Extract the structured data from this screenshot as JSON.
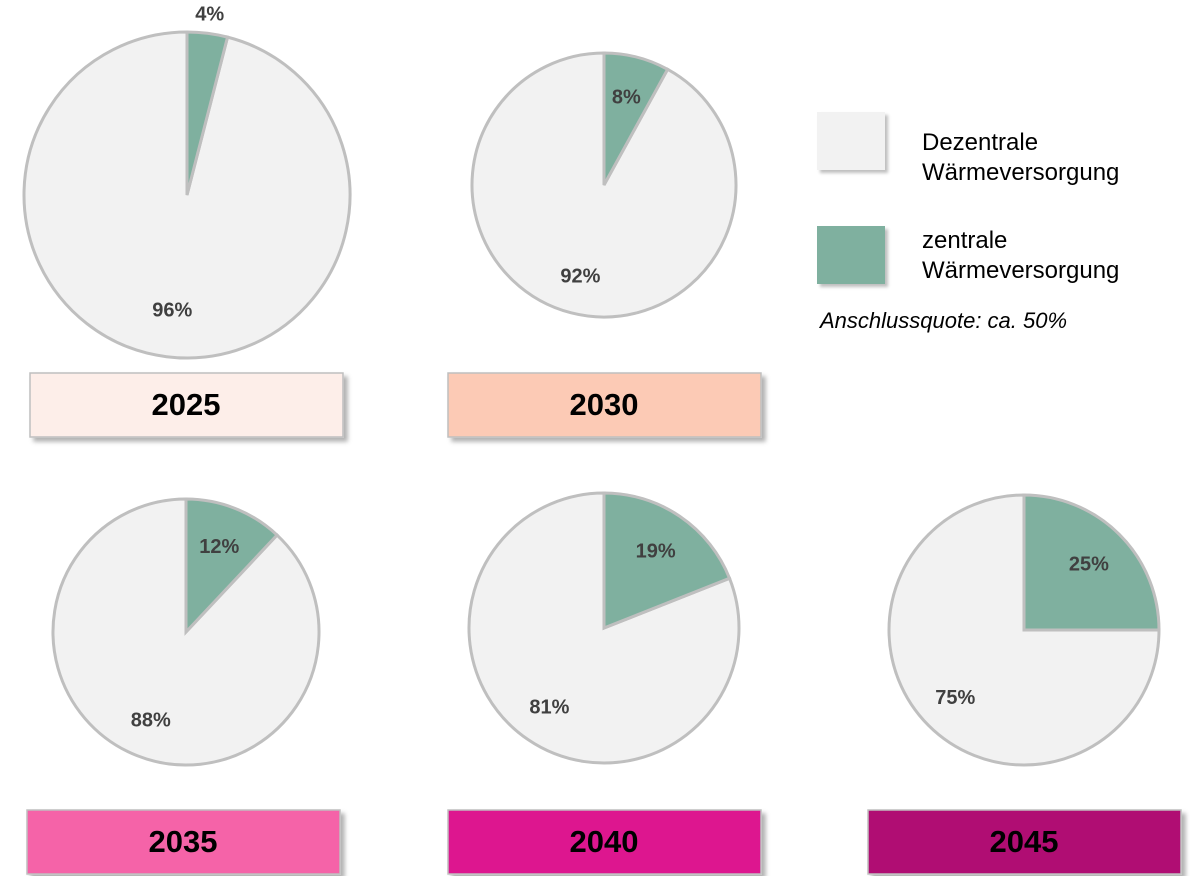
{
  "chart_data": [
    {
      "type": "pie",
      "title": "2025",
      "title_box_color": "#fdeee9",
      "values": [
        96,
        4
      ],
      "value_labels": [
        "96%",
        "4%"
      ]
    },
    {
      "type": "pie",
      "title": "2030",
      "title_box_color": "#fccab5",
      "values": [
        92,
        8
      ],
      "value_labels": [
        "92%",
        "8%"
      ]
    },
    {
      "type": "pie",
      "title": "2035",
      "title_box_color": "#f564a8",
      "values": [
        88,
        12
      ],
      "value_labels": [
        "88%",
        "12%"
      ]
    },
    {
      "type": "pie",
      "title": "2040",
      "title_box_color": "#dd168f",
      "values": [
        81,
        19
      ],
      "value_labels": [
        "81%",
        "19%"
      ]
    },
    {
      "type": "pie",
      "title": "2045",
      "title_box_color": "#b01073",
      "values": [
        75,
        25
      ],
      "value_labels": [
        "75%",
        "25%"
      ]
    }
  ],
  "legend": {
    "items": [
      {
        "label": "Dezentrale Wärmeversorgung",
        "color": "#f2f2f2"
      },
      {
        "label": "zentrale Wärmeversorgung",
        "color": "#7fb09f"
      }
    ]
  },
  "note": "Anschlussquote: ca. 50%"
}
